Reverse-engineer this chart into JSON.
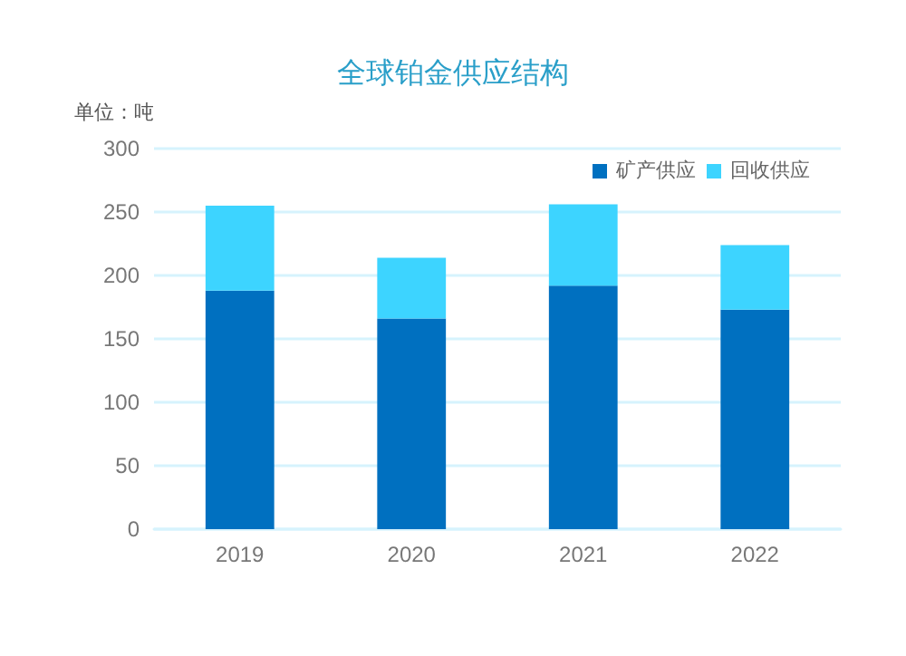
{
  "chart_data": {
    "type": "bar",
    "title": "全球铂金供应结构",
    "ylabel": "单位：吨",
    "categories": [
      "2019",
      "2020",
      "2021",
      "2022"
    ],
    "stacked": true,
    "series": [
      {
        "name": "矿产供应",
        "color": "#0070c0",
        "values": [
          188,
          166,
          192,
          173
        ]
      },
      {
        "name": "回收供应",
        "color": "#3dd4ff",
        "values": [
          67,
          48,
          64,
          51
        ]
      }
    ],
    "ylim": [
      0,
      300
    ],
    "yticks": [
      0,
      50,
      100,
      150,
      200,
      250,
      300
    ],
    "grid": "y",
    "legend": "top right"
  }
}
